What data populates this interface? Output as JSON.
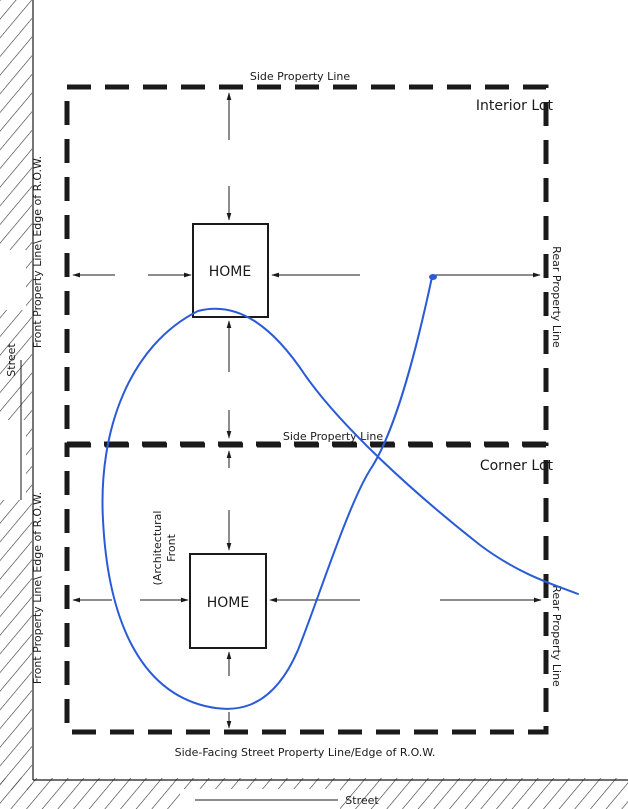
{
  "labels": {
    "street_left": "Street",
    "street_bottom": "Street",
    "interior_side": "Side Property Line",
    "interior_title": "Interior Lot",
    "interior_front": "Front Property Line\\ Edge of R.O.W.",
    "interior_rear": "Rear Property Line",
    "interior_home": "HOME",
    "corner_side": "Side Property Line",
    "corner_title": "Corner Lot",
    "corner_front": "Front Property Line\\ Edge of R.O.W.",
    "corner_rear": "Rear Property Line",
    "corner_home": "HOME",
    "arch_front_1": "(Architectural",
    "arch_front_2": "Front",
    "corner_bottom": "Side-Facing Street Property Line/Edge of R.O.W."
  },
  "colors": {
    "ink": "#1a1a1a",
    "annotation": "#2a5bd7",
    "background": "#ffffff"
  }
}
